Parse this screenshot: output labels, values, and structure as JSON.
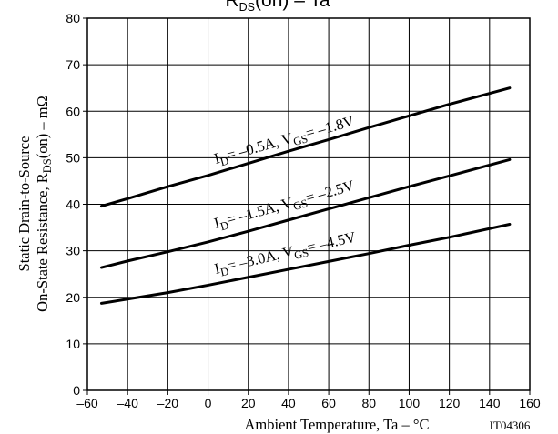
{
  "chart_data": {
    "type": "line",
    "title": {
      "main": "R",
      "sub": "DS",
      "rest": "(on)  –  Ta"
    },
    "xlabel": "Ambient Temperature, Ta  –  °C",
    "ylabel": {
      "line1": "Static Drain-to-Source",
      "line2_pre": "On-State Resistance, R",
      "line2_sub": "DS",
      "line2_post": "(on)  –  mΩ"
    },
    "figure_id": "IT04306",
    "xlim": [
      -60,
      160
    ],
    "ylim": [
      0,
      80
    ],
    "xticks": [
      -60,
      -40,
      -20,
      0,
      20,
      40,
      60,
      80,
      100,
      120,
      140,
      160
    ],
    "yticks": [
      0,
      10,
      20,
      30,
      40,
      50,
      60,
      70,
      80
    ],
    "grid": true,
    "series": [
      {
        "label_parts": [
          "I",
          "D",
          "= –0.5A, V",
          "GS",
          "= –1.8V"
        ],
        "x": [
          -53,
          -40,
          -20,
          0,
          20,
          40,
          60,
          80,
          100,
          120,
          150
        ],
        "y": [
          39.6,
          41.2,
          43.8,
          46.2,
          48.8,
          51.4,
          53.9,
          56.5,
          59.0,
          61.5,
          65.0
        ]
      },
      {
        "label_parts": [
          "I",
          "D",
          "= –1.5A, V",
          "GS",
          "= –2.5V"
        ],
        "x": [
          -53,
          -40,
          -20,
          0,
          20,
          40,
          60,
          80,
          100,
          120,
          150
        ],
        "y": [
          26.4,
          27.8,
          29.8,
          31.9,
          34.2,
          36.6,
          39.0,
          41.4,
          43.8,
          46.1,
          49.6
        ]
      },
      {
        "label_parts": [
          "I",
          "D",
          "= –3.0A, V",
          "GS",
          "= –4.5V"
        ],
        "x": [
          -53,
          -40,
          -20,
          0,
          20,
          40,
          60,
          80,
          100,
          120,
          150
        ],
        "y": [
          18.7,
          19.6,
          21.0,
          22.6,
          24.3,
          26.0,
          27.7,
          29.4,
          31.2,
          32.9,
          35.7
        ]
      }
    ]
  }
}
